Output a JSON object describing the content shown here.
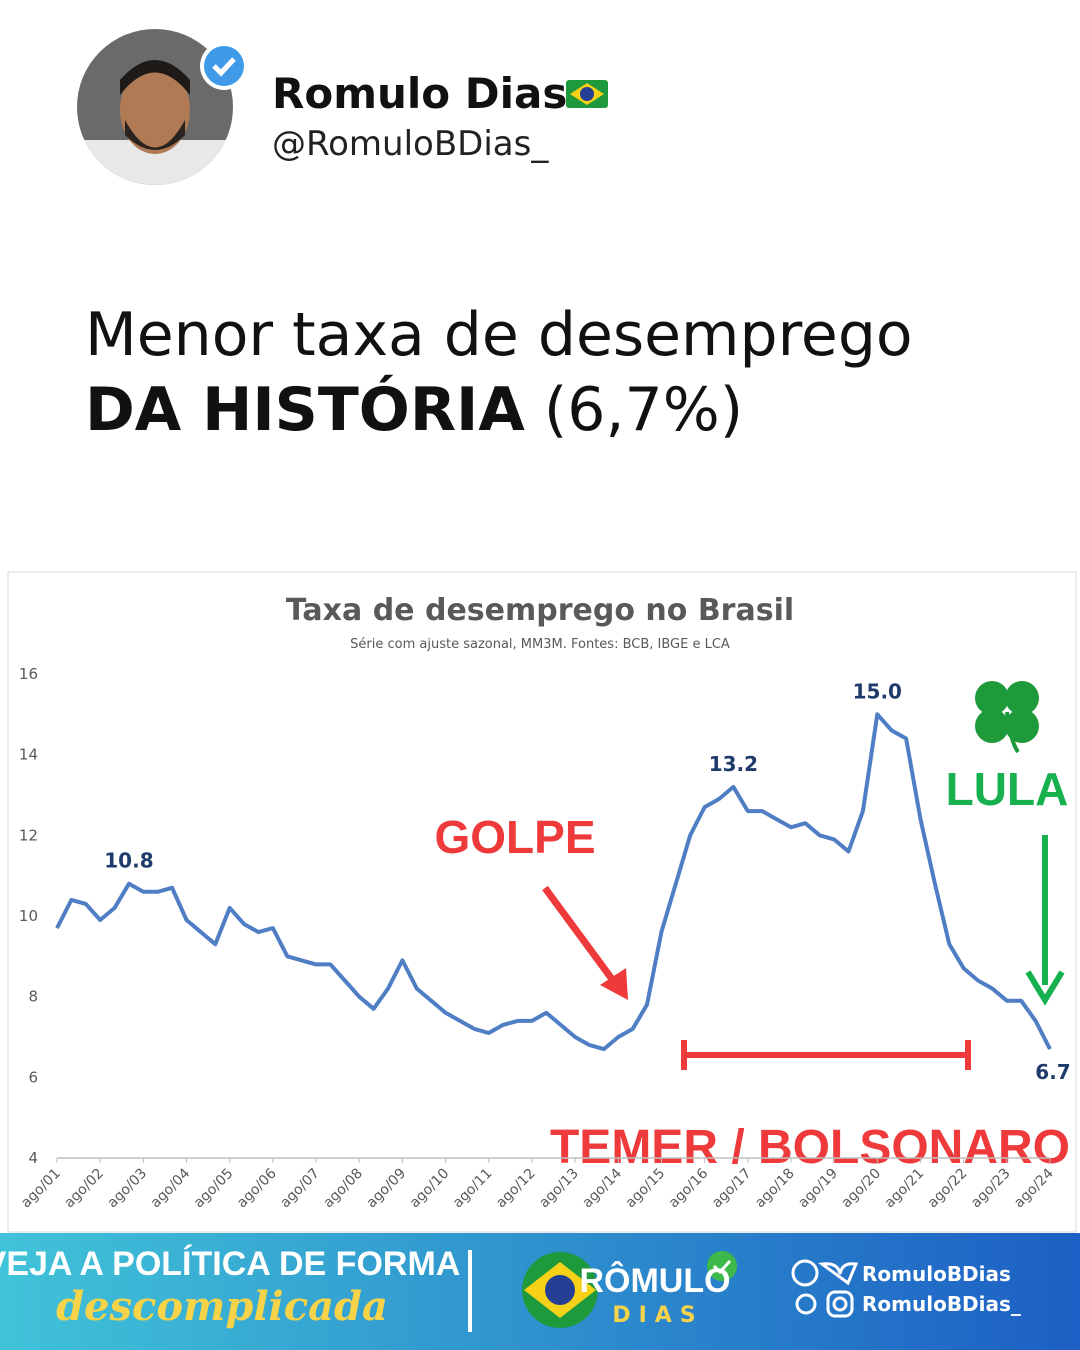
{
  "header": {
    "name": "Romulo Dias",
    "handle": "@RomuloBDias_"
  },
  "headline": {
    "line1": "Menor taxa de desemprego",
    "bold": "DA HISTÓRIA",
    "rest": "(6,7%)"
  },
  "chart_data": {
    "type": "line",
    "title": "Taxa de desemprego no Brasil",
    "subtitle": "Série com ajuste sazonal, MM3M. Fontes: BCB, IBGE e LCA",
    "categories": [
      "ago/01",
      null,
      null,
      "ago/02",
      null,
      null,
      "ago/03",
      null,
      null,
      "ago/04",
      null,
      null,
      "ago/05",
      null,
      null,
      "ago/06",
      null,
      null,
      "ago/07",
      null,
      null,
      "ago/08",
      null,
      null,
      "ago/09",
      null,
      null,
      "ago/10",
      null,
      null,
      "ago/11",
      null,
      null,
      "ago/12",
      null,
      null,
      "ago/13",
      null,
      null,
      "ago/14",
      null,
      null,
      "ago/15",
      null,
      null,
      "ago/16",
      null,
      null,
      "ago/17",
      null,
      null,
      "ago/18",
      null,
      null,
      "ago/19",
      null,
      null,
      "ago/20",
      null,
      null,
      "ago/21",
      null,
      null,
      "ago/22",
      null,
      null,
      "ago/23",
      null,
      null,
      "ago/24"
    ],
    "series": [
      {
        "color": "#4f7ec4",
        "values": [
          9.7,
          10.4,
          10.3,
          9.9,
          10.2,
          10.8,
          10.6,
          10.6,
          10.7,
          9.9,
          9.6,
          9.3,
          10.2,
          9.8,
          9.6,
          9.7,
          9.0,
          8.9,
          8.8,
          8.8,
          8.4,
          8.0,
          7.7,
          8.2,
          8.9,
          8.2,
          7.9,
          7.6,
          7.4,
          7.2,
          7.1,
          7.3,
          7.4,
          7.4,
          7.6,
          7.3,
          7.0,
          6.8,
          6.7,
          7.0,
          7.2,
          7.8,
          9.6,
          10.8,
          12.0,
          12.7,
          12.9,
          13.2,
          12.6,
          12.6,
          12.4,
          12.2,
          12.3,
          12.0,
          11.9,
          11.6,
          12.6,
          15.0,
          14.6,
          14.4,
          12.4,
          10.8,
          9.3,
          8.7,
          8.4,
          8.2,
          7.9,
          7.9,
          7.4,
          6.7
        ],
        "value_labels": [
          null,
          null,
          null,
          null,
          null,
          "10.8",
          null,
          null,
          null,
          null,
          null,
          null,
          null,
          null,
          null,
          null,
          null,
          null,
          null,
          null,
          null,
          null,
          null,
          null,
          null,
          null,
          null,
          null,
          null,
          null,
          null,
          null,
          null,
          null,
          null,
          null,
          null,
          null,
          null,
          null,
          null,
          null,
          null,
          null,
          null,
          null,
          null,
          "13.2",
          null,
          null,
          null,
          null,
          null,
          null,
          null,
          null,
          null,
          "15.0",
          null,
          null,
          null,
          null,
          null,
          null,
          null,
          null,
          null,
          null,
          null,
          "6.7"
        ]
      }
    ],
    "ylim": [
      4,
      16
    ],
    "yticks": [
      4,
      6,
      8,
      10,
      12,
      14,
      16
    ],
    "grid": false,
    "annotations": [
      "GOLPE",
      "TEMER / BOLSONARO",
      "LULA"
    ]
  },
  "footer": {
    "slogan1": "VEJA A POLÍTICA DE FORMA",
    "slogan2": "descomplicada",
    "brand1": "RÔMULO",
    "brand2": "DIAS",
    "social1": "RomuloBDias",
    "social2": "RomuloBDias_"
  }
}
